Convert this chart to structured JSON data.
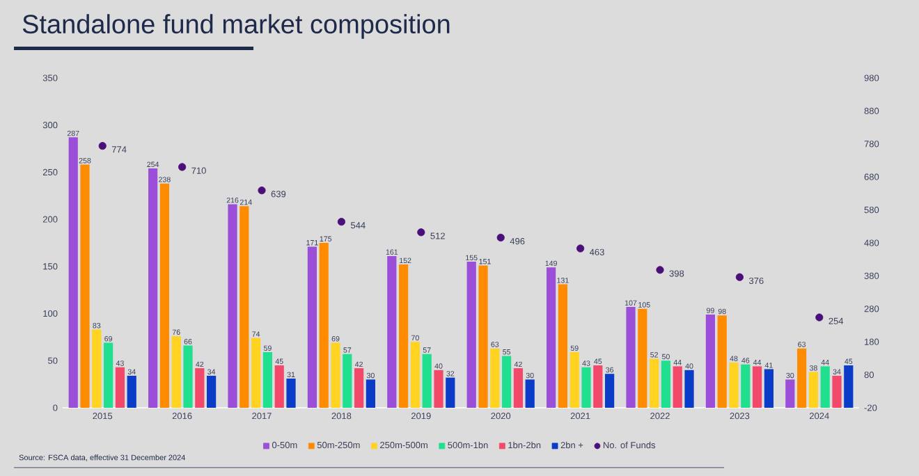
{
  "chart_data": {
    "type": "bar",
    "title": "Standalone fund market composition",
    "categories": [
      "2015",
      "2016",
      "2017",
      "2018",
      "2019",
      "2020",
      "2021",
      "2022",
      "2023",
      "2024"
    ],
    "series": [
      {
        "name": "0-50m",
        "color": "#9b4fd9",
        "values": [
          287,
          254,
          216,
          171,
          161,
          155,
          149,
          107,
          99,
          30
        ]
      },
      {
        "name": "50m-250m",
        "color": "#ff8c00",
        "values": [
          258,
          238,
          214,
          175,
          152,
          151,
          131,
          105,
          98,
          63
        ]
      },
      {
        "name": "250m-500m",
        "color": "#ffd320",
        "values": [
          83,
          76,
          74,
          69,
          70,
          63,
          59,
          52,
          48,
          38
        ]
      },
      {
        "name": "500m-1bn",
        "color": "#20e090",
        "values": [
          69,
          66,
          59,
          57,
          57,
          55,
          43,
          50,
          46,
          44
        ]
      },
      {
        "name": "1bn-2bn",
        "color": "#f2486a",
        "values": [
          43,
          42,
          45,
          42,
          40,
          42,
          45,
          44,
          44,
          34
        ]
      },
      {
        "name": "2bn +",
        "color": "#0a3cc8",
        "values": [
          34,
          34,
          31,
          30,
          32,
          30,
          36,
          40,
          41,
          45
        ]
      },
      {
        "name": "No. of Funds",
        "type": "scatter",
        "axis": "y2",
        "marker": "circle",
        "color": "#4b0f7a",
        "values": [
          774,
          710,
          639,
          544,
          512,
          496,
          463,
          398,
          376,
          254
        ]
      }
    ],
    "ylim": [
      0,
      350
    ],
    "yticks": [
      0,
      50,
      100,
      150,
      200,
      250,
      300,
      350
    ],
    "y2lim": [
      -20,
      980
    ],
    "y2ticks": [
      -20,
      80,
      180,
      280,
      380,
      480,
      580,
      680,
      780,
      880,
      980
    ],
    "data_labels": true,
    "legend": "bottom",
    "grid": false,
    "annotations": [
      "Source: FSCA data, effective 31 December 2024"
    ]
  }
}
